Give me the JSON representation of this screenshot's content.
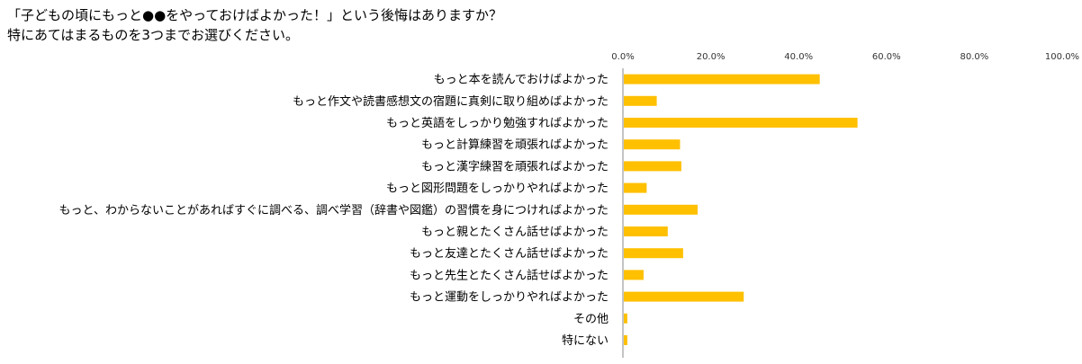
{
  "title_lines": [
    "「子どもの頃にもっと●●をやっておけばよかった！」という後悔はありますか？",
    "特にあてはまるものを3つまでお選びください。"
  ],
  "chart_data": {
    "type": "bar",
    "orientation": "horizontal",
    "title": "「子どもの頃にもっと●●をやっておけばよかった！」という後悔はありますか？ 特にあてはまるものを3つまでお選びください。",
    "xlabel": "",
    "ylabel": "",
    "xlim": [
      0,
      100
    ],
    "tick_values": [
      0,
      20,
      40,
      60,
      80,
      100
    ],
    "tick_labels": [
      "0.0%",
      "20.0%",
      "40.0%",
      "60.0%",
      "80.0%",
      "100.0%"
    ],
    "grid": false,
    "bar_color": "#FFC000",
    "categories": [
      "もっと本を読んでおけばよかった",
      "もっと作文や読書感想文の宿題に真剣に取り組めばよかった",
      "もっと英語をしっかり勉強すればよかった",
      "もっと計算練習を頑張ればよかった",
      "もっと漢字練習を頑張ればよかった",
      "もっと図形問題をしっかりやればよかった",
      "もっと、わからないことがあればすぐに調べる、調べ学習（辞書や図鑑）の習慣を身につければよかった",
      "もっと親とたくさん話せばよかった",
      "もっと友達とたくさん話せばよかった",
      "もっと先生とたくさん話せばよかった",
      "もっと運動をしっかりやればよかった",
      "その他",
      "特にない"
    ],
    "values": [
      44.6,
      7.5,
      53.2,
      12.8,
      13.1,
      5.2,
      16.8,
      10.0,
      13.5,
      4.5,
      27.3,
      0.8,
      0.8
    ]
  }
}
